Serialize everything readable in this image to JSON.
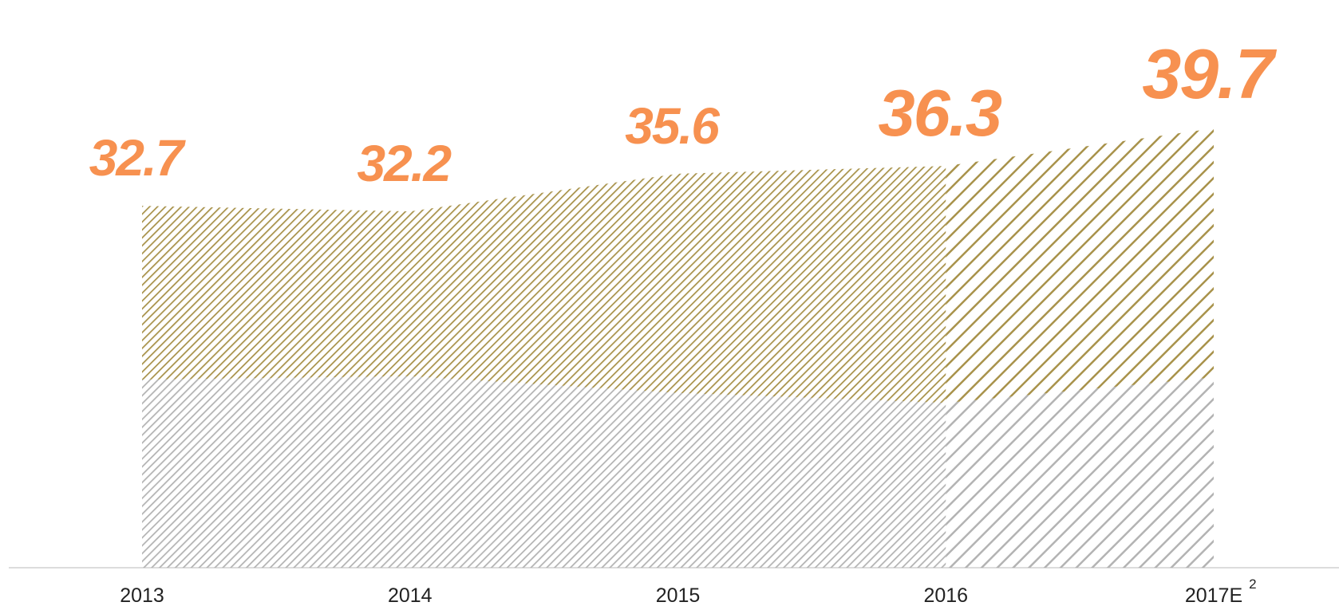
{
  "chart_data": {
    "type": "stacked-area",
    "categories": [
      "2013",
      "2014",
      "2015",
      "2016",
      "2017E"
    ],
    "footnote": "2",
    "series": [
      {
        "name": null,
        "color": "#b3b3b3",
        "values": [
          17.0,
          17.3,
          15.8,
          14.9,
          17.2
        ]
      },
      {
        "name": null,
        "color": "#a8924a",
        "values": [
          15.7,
          14.9,
          19.8,
          21.4,
          22.5
        ]
      }
    ],
    "totals": [
      32.7,
      32.2,
      35.6,
      36.3,
      39.7
    ],
    "estimate_from": 3,
    "ylim": [
      0,
      50
    ]
  }
}
